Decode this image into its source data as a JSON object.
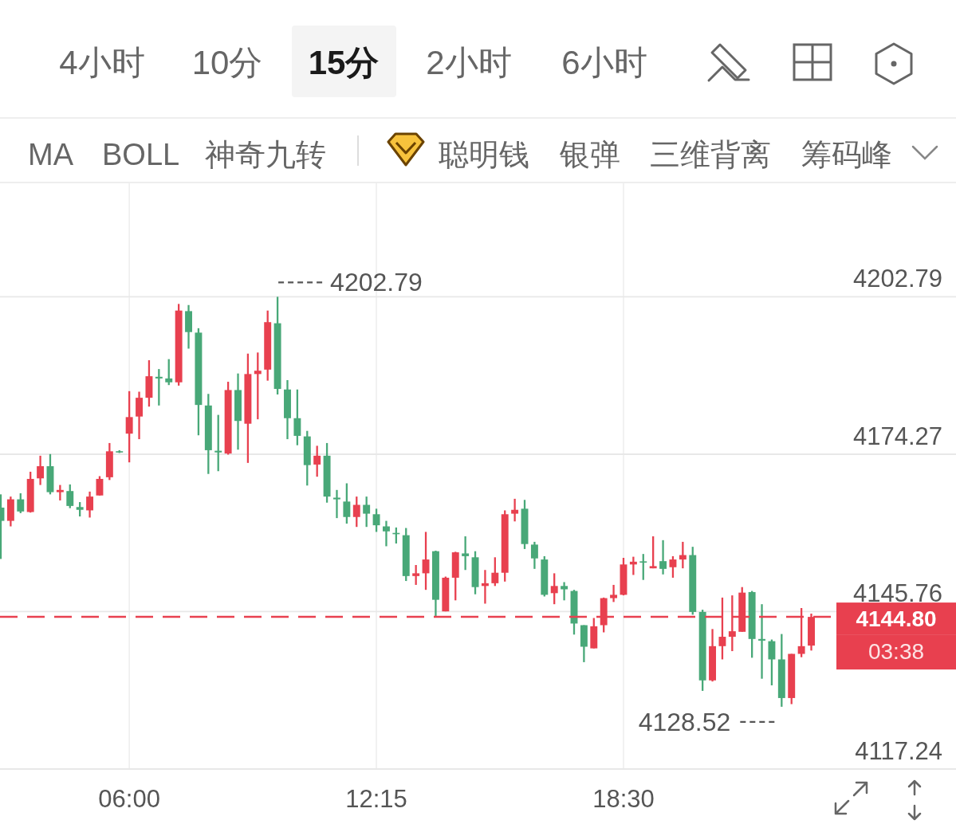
{
  "chart_data": {
    "type": "candlestick",
    "x": [
      2.75,
      3,
      3.25,
      3.5,
      3.75,
      4,
      4.25,
      4.5,
      4.75,
      5,
      5.25,
      5.5,
      5.75,
      6,
      6.25,
      6.5,
      6.75,
      7,
      7.25,
      7.5,
      7.75,
      8,
      8.25,
      8.5,
      8.75,
      9,
      9.25,
      9.5,
      9.75,
      10,
      10.25,
      10.5,
      10.75,
      11,
      11.25,
      11.5,
      11.75,
      12,
      12.25,
      12.5,
      12.75,
      13,
      13.25,
      13.5,
      13.75,
      14,
      14.25,
      14.5,
      14.75,
      15,
      15.25,
      15.5,
      15.75,
      16,
      16.25,
      16.5,
      16.75,
      17,
      17.25,
      17.5,
      17.75,
      18,
      18.25,
      18.5,
      18.75,
      19,
      19.25,
      19.5,
      19.75,
      20,
      20.25,
      20.5,
      20.75,
      21,
      21.25,
      21.5,
      21.75,
      22,
      22.25,
      22.5,
      22.75,
      23,
      23.25
    ],
    "ohlc": [
      [
        4164.6,
        4167.0,
        4155.3,
        4162.2
      ],
      [
        4162.2,
        4166.6,
        4161.2,
        4166.1
      ],
      [
        4166.1,
        4167.2,
        4163.6,
        4163.9
      ],
      [
        4163.8,
        4171.1,
        4163.7,
        4169.8
      ],
      [
        4169.9,
        4174.0,
        4168.7,
        4172.1
      ],
      [
        4172.1,
        4174.3,
        4167.0,
        4167.4
      ],
      [
        4167.4,
        4168.7,
        4165.9,
        4167.8
      ],
      [
        4167.6,
        4168.8,
        4164.5,
        4164.9
      ],
      [
        4164.7,
        4165.6,
        4163.0,
        4164.2
      ],
      [
        4164.1,
        4167.5,
        4162.8,
        4166.6
      ],
      [
        4166.8,
        4170.3,
        4166.8,
        4169.8
      ],
      [
        4170.1,
        4176.3,
        4169.6,
        4174.8
      ],
      [
        4174.8,
        4175.0,
        4174.5,
        4174.6
      ],
      [
        4178.0,
        4185.7,
        4172.8,
        4181.0
      ],
      [
        4181.1,
        4185.6,
        4177.0,
        4184.5
      ],
      [
        4184.5,
        4191.3,
        4182.9,
        4188.4
      ],
      [
        4188.3,
        4189.7,
        4183.1,
        4188.0
      ],
      [
        4188.0,
        4191.5,
        4186.8,
        4187.3
      ],
      [
        4187.3,
        4201.5,
        4186.7,
        4200.3
      ],
      [
        4200.2,
        4201.3,
        4193.4,
        4196.4
      ],
      [
        4196.3,
        4197.1,
        4177.7,
        4183.2
      ],
      [
        4183.1,
        4185.2,
        4170.7,
        4175.0
      ],
      [
        4174.9,
        4181.4,
        4171.2,
        4174.6
      ],
      [
        4174.4,
        4187.4,
        4174.2,
        4185.9
      ],
      [
        4185.9,
        4188.9,
        4175.1,
        4180.3
      ],
      [
        4179.8,
        4192.5,
        4172.7,
        4188.8
      ],
      [
        4188.8,
        4192.7,
        4180.6,
        4189.4
      ],
      [
        4189.6,
        4200.3,
        4187.6,
        4198.2
      ],
      [
        4198.0,
        4202.79,
        4185.1,
        4186.1
      ],
      [
        4186.0,
        4187.7,
        4177.0,
        4180.8
      ],
      [
        4180.8,
        4186.0,
        4175.9,
        4177.6
      ],
      [
        4177.5,
        4178.5,
        4168.6,
        4172.3
      ],
      [
        4172.4,
        4175.8,
        4170.2,
        4174.0
      ],
      [
        4174.0,
        4176.3,
        4165.5,
        4166.6
      ],
      [
        4166.4,
        4167.8,
        4162.7,
        4166.1
      ],
      [
        4165.7,
        4169.0,
        4161.7,
        4162.9
      ],
      [
        4162.9,
        4166.6,
        4161.1,
        4165.1
      ],
      [
        4165.1,
        4166.6,
        4161.1,
        4163.5
      ],
      [
        4163.4,
        4164.4,
        4160.2,
        4161.4
      ],
      [
        4161.2,
        4162.2,
        4157.6,
        4160.3
      ],
      [
        4160.0,
        4161.0,
        4158.1,
        4159.8
      ],
      [
        4159.6,
        4160.9,
        4151.3,
        4152.2
      ],
      [
        4152.2,
        4154.2,
        4150.6,
        4152.7
      ],
      [
        4152.7,
        4160.2,
        4149.7,
        4155.2
      ],
      [
        4156.7,
        4156.8,
        4144.8,
        4147.9
      ],
      [
        4145.8,
        4152.1,
        4145.8,
        4151.9
      ],
      [
        4151.9,
        4156.6,
        4147.8,
        4156.5
      ],
      [
        4156.3,
        4159.4,
        4153.3,
        4155.8
      ],
      [
        4155.6,
        4156.7,
        4148.9,
        4150.2
      ],
      [
        4150.4,
        4153.3,
        4147.2,
        4150.9
      ],
      [
        4150.9,
        4155.6,
        4150.4,
        4152.8
      ],
      [
        4152.8,
        4164.1,
        4151.2,
        4163.4
      ],
      [
        4163.5,
        4166.2,
        4162.1,
        4164.2
      ],
      [
        4164.4,
        4166.0,
        4157.1,
        4158.0
      ],
      [
        4157.9,
        4158.4,
        4153.5,
        4155.4
      ],
      [
        4155.2,
        4155.8,
        4148.5,
        4148.8
      ],
      [
        4149.1,
        4152.7,
        4147.1,
        4150.4
      ],
      [
        4150.4,
        4151.1,
        4147.8,
        4149.8
      ],
      [
        4149.5,
        4149.7,
        4141.6,
        4143.6
      ],
      [
        4143.3,
        4143.3,
        4136.6,
        4139.4
      ],
      [
        4139.1,
        4144.6,
        4139.1,
        4143.1
      ],
      [
        4143.3,
        4148.3,
        4142.0,
        4148.2
      ],
      [
        4148.2,
        4150.6,
        4147.5,
        4148.8
      ],
      [
        4148.8,
        4155.5,
        4148.7,
        4154.3
      ],
      [
        4154.3,
        4155.7,
        4152.4,
        4154.8
      ],
      [
        4154.8,
        4156.2,
        4151.5,
        4154.7
      ],
      [
        4153.6,
        4159.4,
        4153.6,
        4154.0
      ],
      [
        4154.9,
        4158.7,
        4152.5,
        4153.5
      ],
      [
        4153.8,
        4155.8,
        4151.9,
        4155.2
      ],
      [
        4155.2,
        4158.4,
        4153.6,
        4156.0
      ],
      [
        4156.0,
        4157.5,
        4145.2,
        4145.7
      ],
      [
        4145.7,
        4146.1,
        4131.4,
        4133.3
      ],
      [
        4133.3,
        4142.6,
        4133.1,
        4139.5
      ],
      [
        4139.5,
        4148.3,
        4137.1,
        4141.2
      ],
      [
        4141.2,
        4148.7,
        4138.6,
        4142.2
      ],
      [
        4142.1,
        4150.2,
        4142.1,
        4149.2
      ],
      [
        4149.3,
        4149.5,
        4137.4,
        4140.8
      ],
      [
        4140.8,
        4147.1,
        4133.6,
        4140.5
      ],
      [
        4140.4,
        4140.7,
        4132.4,
        4137.1
      ],
      [
        4137.1,
        4141.7,
        4128.52,
        4130.1
      ],
      [
        4130.1,
        4138.1,
        4129.0,
        4138.1
      ],
      [
        4138.1,
        4146.4,
        4137.5,
        4139.5
      ],
      [
        4139.6,
        4145.4,
        4138.7,
        4144.8
      ]
    ],
    "colors": [
      "#48a878",
      "#e8404f",
      "#48a878",
      "#e8404f",
      "#e8404f",
      "#48a878",
      "#e8404f",
      "#48a878",
      "#48a878",
      "#e8404f",
      "#e8404f",
      "#e8404f",
      "#48a878",
      "#e8404f",
      "#e8404f",
      "#e8404f",
      "#48a878",
      "#48a878",
      "#e8404f",
      "#48a878",
      "#48a878",
      "#48a878",
      "#48a878",
      "#e8404f",
      "#48a878",
      "#e8404f",
      "#e8404f",
      "#e8404f",
      "#48a878",
      "#48a878",
      "#48a878",
      "#48a878",
      "#e8404f",
      "#48a878",
      "#48a878",
      "#48a878",
      "#e8404f",
      "#48a878",
      "#48a878",
      "#48a878",
      "#48a878",
      "#48a878",
      "#e8404f",
      "#e8404f",
      "#48a878",
      "#e8404f",
      "#e8404f",
      "#48a878",
      "#48a878",
      "#e8404f",
      "#e8404f",
      "#e8404f",
      "#e8404f",
      "#48a878",
      "#48a878",
      "#48a878",
      "#e8404f",
      "#48a878",
      "#48a878",
      "#48a878",
      "#e8404f",
      "#e8404f",
      "#e8404f",
      "#e8404f",
      "#e8404f",
      "#48a878",
      "#e8404f",
      "#48a878",
      "#e8404f",
      "#e8404f",
      "#48a878",
      "#48a878",
      "#e8404f",
      "#e8404f",
      "#e8404f",
      "#e8404f",
      "#48a878",
      "#48a878",
      "#48a878",
      "#48a878",
      "#e8404f",
      "#e8404f",
      "#e8404f"
    ],
    "xlim": [
      2.73,
      26.91
    ],
    "xticks": [
      {
        "value": 6,
        "label": "06:00"
      },
      {
        "value": 12.25,
        "label": "12:15"
      },
      {
        "value": 18.5,
        "label": "18:30"
      }
    ],
    "ylim": [
      4117.24,
      4223.5
    ],
    "yticks": [
      4202.79,
      4174.27,
      4145.76,
      4117.24
    ],
    "grid": true,
    "ref_lines": [
      {
        "axis": "y",
        "value": 4144.8,
        "label": "4144.80",
        "color": "#e8404f",
        "line_style": "dashed"
      }
    ],
    "annotations": [
      "4小时",
      "10分",
      "15分",
      "2小时",
      "6小时",
      "MA",
      "BOLL",
      "神奇九转",
      "聪明钱",
      "银弹",
      "三维背离",
      "筹码峰",
      {
        "text": "4202.79",
        "x": 9.75,
        "y": 4202.79
      },
      {
        "text": "4128.52",
        "x": 22.5,
        "y": 4128.52
      },
      "03:38"
    ]
  }
}
